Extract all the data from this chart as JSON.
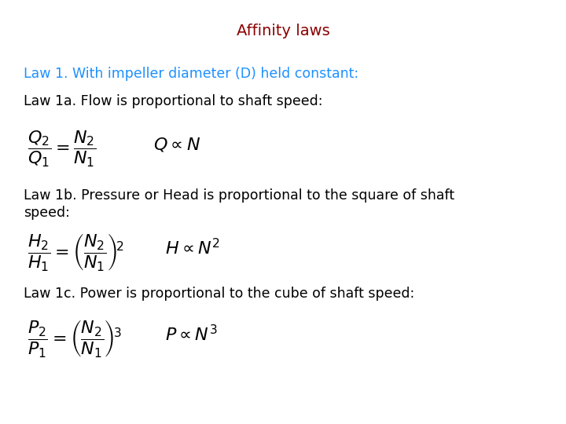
{
  "title": "Affinity laws",
  "title_color": "#8B0000",
  "title_fontsize": 14,
  "background_color": "#ffffff",
  "law1_heading": "Law 1. With impeller diameter (D) held constant:",
  "law1_heading_color": "#1E90FF",
  "law1a_text": "Law 1a. Flow is proportional to shaft speed:",
  "law1b_text_line1": "Law 1b. Pressure or Head is proportional to the square of shaft",
  "law1b_text_line2": "speed:",
  "law1c_text": "Law 1c. Power is proportional to the cube of shaft speed:",
  "text_color": "#000000",
  "text_fontsize": 12.5,
  "eq_fontsize": 16
}
